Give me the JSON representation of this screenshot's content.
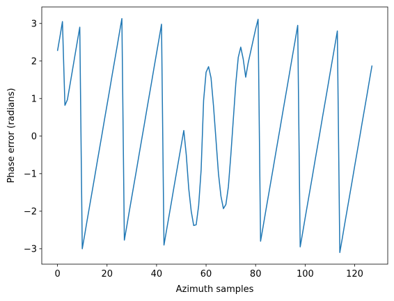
{
  "chart_data": {
    "type": "line",
    "xlabel": "Azimuth samples",
    "ylabel": "Phase error (radians)",
    "x": [
      0,
      1,
      2,
      3,
      4,
      5,
      6,
      7,
      8,
      9,
      10,
      11,
      12,
      13,
      14,
      15,
      16,
      17,
      18,
      19,
      20,
      21,
      22,
      23,
      24,
      25,
      26,
      27,
      28,
      29,
      30,
      31,
      32,
      33,
      34,
      35,
      36,
      37,
      38,
      39,
      40,
      41,
      42,
      43,
      44,
      45,
      46,
      47,
      48,
      49,
      50,
      51,
      52,
      53,
      54,
      55,
      56,
      57,
      58,
      59,
      60,
      61,
      62,
      63,
      64,
      65,
      66,
      67,
      68,
      69,
      70,
      71,
      72,
      73,
      74,
      75,
      76,
      77,
      78,
      79,
      80,
      81,
      82,
      83,
      84,
      85,
      86,
      87,
      88,
      89,
      90,
      91,
      92,
      93,
      94,
      95,
      96,
      97,
      98,
      99,
      100,
      101,
      102,
      103,
      104,
      105,
      106,
      107,
      108,
      109,
      110,
      111,
      112,
      113,
      114,
      115,
      116,
      117,
      118,
      119,
      120,
      121,
      122,
      123,
      124,
      125,
      126,
      127
    ],
    "series": [
      {
        "color": "#1f77b4",
        "values": [
          2.27,
          2.65,
          3.05,
          0.82,
          0.97,
          1.35,
          1.74,
          2.13,
          2.52,
          2.9,
          -3.0,
          -2.62,
          -2.23,
          -1.85,
          -1.47,
          -1.09,
          -0.7,
          -0.32,
          0.06,
          0.45,
          0.83,
          1.21,
          1.6,
          1.98,
          2.36,
          2.75,
          3.13,
          -2.77,
          -2.39,
          -2.0,
          -1.62,
          -1.24,
          -0.86,
          -0.47,
          -0.09,
          0.29,
          0.68,
          1.06,
          1.44,
          1.83,
          2.21,
          2.59,
          2.98,
          -2.9,
          -2.52,
          -2.14,
          -1.76,
          -1.37,
          -0.99,
          -0.61,
          -0.23,
          0.15,
          -0.5,
          -1.4,
          -2.0,
          -2.38,
          -2.36,
          -1.85,
          -0.9,
          0.95,
          1.7,
          1.85,
          1.55,
          0.8,
          -0.1,
          -1.0,
          -1.6,
          -1.93,
          -1.82,
          -1.35,
          -0.5,
          0.45,
          1.4,
          2.1,
          2.37,
          2.05,
          1.57,
          1.95,
          2.25,
          2.55,
          2.85,
          3.11,
          -2.8,
          -2.42,
          -2.03,
          -1.65,
          -1.27,
          -0.89,
          -0.5,
          -0.12,
          0.26,
          0.65,
          1.03,
          1.41,
          1.8,
          2.18,
          2.56,
          2.95,
          -2.95,
          -2.57,
          -2.18,
          -1.8,
          -1.42,
          -1.04,
          -0.65,
          -0.27,
          0.11,
          0.5,
          0.88,
          1.26,
          1.65,
          2.03,
          2.41,
          2.8,
          -3.1,
          -2.72,
          -2.33,
          -1.95,
          -1.57,
          -1.19,
          -0.8,
          -0.42,
          -0.04,
          0.35,
          0.73,
          1.11,
          1.5,
          1.88
        ]
      }
    ],
    "xlim": [
      -6.35,
      133.35
    ],
    "ylim": [
      -3.41,
      3.44
    ],
    "xticks": [
      0,
      20,
      40,
      60,
      80,
      100,
      120
    ],
    "yticks": [
      {
        "value": -3,
        "label": "−3"
      },
      {
        "value": -2,
        "label": "−2"
      },
      {
        "value": -1,
        "label": "−1"
      },
      0,
      1,
      2,
      3
    ],
    "grid": false
  }
}
